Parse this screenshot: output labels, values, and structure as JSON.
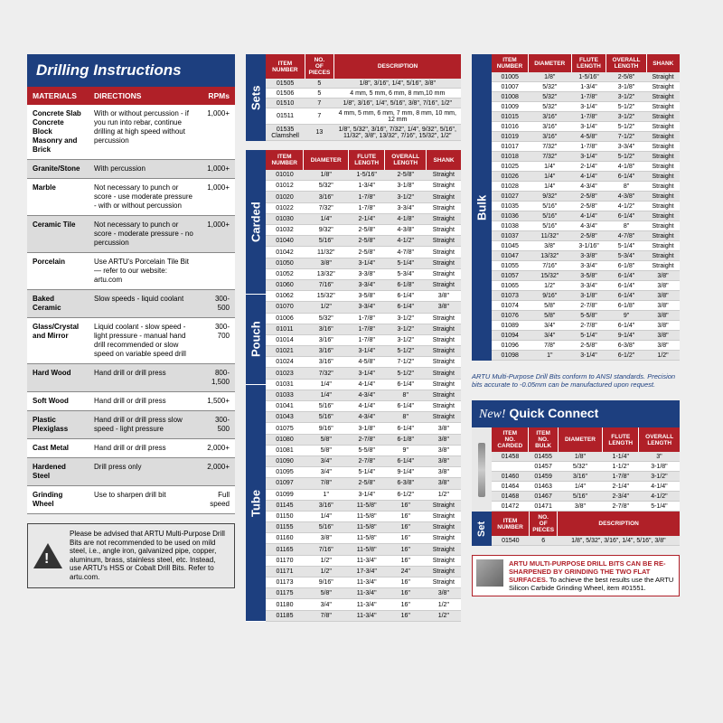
{
  "drilling": {
    "title": "Drilling Instructions",
    "cols": [
      "MATERIALS",
      "DIRECTIONS",
      "RPMs"
    ],
    "rows": [
      {
        "m": "Concrete Slab\nConcrete Block\nMasonry and Brick",
        "d": "With or without percussion - if you run into rebar, continue drilling at high speed without percussion",
        "r": "1,000+"
      },
      {
        "m": "Granite/Stone",
        "d": "With percussion",
        "r": "1,000+"
      },
      {
        "m": "Marble",
        "d": "Not necessary to punch or score - use moderate pressure - with or without percussion",
        "r": "1,000+"
      },
      {
        "m": "Ceramic Tile",
        "d": "Not necessary to punch or score - moderate pressure - no percussion",
        "r": "1,000+"
      },
      {
        "m": "Porcelain",
        "d": "Use ARTU's Porcelain Tile Bit — refer to our website: artu.com",
        "r": ""
      },
      {
        "m": "Baked Ceramic",
        "d": "Slow speeds - liquid coolant",
        "r": "300-500"
      },
      {
        "m": "Glass/Crystal and Mirror",
        "d": "Liquid coolant - slow speed - light pressure - manual hand drill recommended or slow speed on variable speed drill",
        "r": "300-700"
      },
      {
        "m": "Hard Wood",
        "d": "Hand drill or drill press",
        "r": "800-1,500"
      },
      {
        "m": "Soft Wood",
        "d": "Hand drill or drill press",
        "r": "1,500+"
      },
      {
        "m": "Plastic Plexiglass",
        "d": "Hand drill or drill press slow speed - light pressure",
        "r": "300-500"
      },
      {
        "m": "Cast Metal",
        "d": "Hand drill or drill press",
        "r": "2,000+"
      },
      {
        "m": "Hardened Steel",
        "d": "Drill press only",
        "r": "2,000+"
      },
      {
        "m": "Grinding Wheel",
        "d": "Use to sharpen drill bit",
        "r": "Full speed"
      }
    ]
  },
  "warning": "Please be advised that ARTU Multi-Purpose Drill Bits are not recommended to be used on mild steel, i.e., angle iron, galvanized pipe, copper, aluminum, brass, stainless steel, etc. Instead, use ARTU's HSS or Cobalt Drill Bits. Refer to artu.com.",
  "sets": {
    "label": "Sets",
    "cols": [
      "ITEM NUMBER",
      "NO. OF PIECES",
      "DESCRIPTION"
    ],
    "rows": [
      [
        "01505",
        "5",
        "1/8\", 3/16\", 1/4\", 5/16\", 3/8\""
      ],
      [
        "01506",
        "5",
        "4 mm, 5 mm, 6 mm, 8 mm,10 mm"
      ],
      [
        "01510",
        "7",
        "1/8\", 3/16\", 1/4\", 5/16\", 3/8\", 7/16\", 1/2\""
      ],
      [
        "01511",
        "7",
        "4 mm, 5 mm, 6 mm, 7 mm, 8 mm, 10 mm, 12 mm"
      ],
      [
        "01535 Clamshell",
        "13",
        "1/8\", 5/32\", 3/16\", 7/32\", 1/4\", 9/32\", 5/16\", 11/32\", 3/8\", 13/32\", 7/16\", 15/32\", 1/2\""
      ]
    ]
  },
  "drill5": {
    "labels": [
      "Carded",
      "Pouch",
      "Tube"
    ],
    "heights": [
      160,
      100,
      262
    ],
    "cols": [
      "ITEM NUMBER",
      "DIAMETER",
      "FLUTE LENGTH",
      "OVERALL LENGTH",
      "SHANK"
    ],
    "rows": [
      [
        "01010",
        "1/8\"",
        "1-5/16\"",
        "2-5/8\"",
        "Straight"
      ],
      [
        "01012",
        "5/32\"",
        "1-3/4\"",
        "3-1/8\"",
        "Straight"
      ],
      [
        "01020",
        "3/16\"",
        "1-7/8\"",
        "3-1/2\"",
        "Straight"
      ],
      [
        "01022",
        "7/32\"",
        "1-7/8\"",
        "3-3/4\"",
        "Straight"
      ],
      [
        "01030",
        "1/4\"",
        "2-1/4\"",
        "4-1/8\"",
        "Straight"
      ],
      [
        "01032",
        "9/32\"",
        "2-5/8\"",
        "4-3/8\"",
        "Straight"
      ],
      [
        "01040",
        "5/16\"",
        "2-5/8\"",
        "4-1/2\"",
        "Straight"
      ],
      [
        "01042",
        "11/32\"",
        "2-5/8\"",
        "4-7/8\"",
        "Straight"
      ],
      [
        "01050",
        "3/8\"",
        "3-1/4\"",
        "5-1/4\"",
        "Straight"
      ],
      [
        "01052",
        "13/32\"",
        "3-3/8\"",
        "5-3/4\"",
        "Straight"
      ],
      [
        "01060",
        "7/16\"",
        "3-3/4\"",
        "6-1/8\"",
        "Straight"
      ],
      [
        "01062",
        "15/32\"",
        "3-5/8\"",
        "6-1/4\"",
        "3/8\""
      ],
      [
        "01070",
        "1/2\"",
        "3-3/4\"",
        "6-1/4\"",
        "3/8\""
      ],
      [
        "01006",
        "5/32\"",
        "1-7/8\"",
        "3-1/2\"",
        "Straight",
        "div"
      ],
      [
        "01011",
        "3/16\"",
        "1-7/8\"",
        "3-1/2\"",
        "Straight"
      ],
      [
        "01014",
        "3/16\"",
        "1-7/8\"",
        "3-1/2\"",
        "Straight"
      ],
      [
        "01021",
        "3/16\"",
        "3-1/4\"",
        "5-1/2\"",
        "Straight"
      ],
      [
        "01024",
        "3/16\"",
        "4-5/8\"",
        "7-1/2\"",
        "Straight"
      ],
      [
        "01023",
        "7/32\"",
        "3-1/4\"",
        "5-1/2\"",
        "Straight"
      ],
      [
        "01031",
        "1/4\"",
        "4-1/4\"",
        "6-1/4\"",
        "Straight"
      ],
      [
        "01033",
        "1/4\"",
        "4-3/4\"",
        "8\"",
        "Straight"
      ],
      [
        "01041",
        "5/16\"",
        "4-1/4\"",
        "6-1/4\"",
        "Straight",
        "div"
      ],
      [
        "01043",
        "5/16\"",
        "4-3/4\"",
        "8\"",
        "Straight"
      ],
      [
        "01075",
        "9/16\"",
        "3-1/8\"",
        "6-1/4\"",
        "3/8\""
      ],
      [
        "01080",
        "5/8\"",
        "2-7/8\"",
        "6-1/8\"",
        "3/8\""
      ],
      [
        "01081",
        "5/8\"",
        "5-5/8\"",
        "9\"",
        "3/8\""
      ],
      [
        "01090",
        "3/4\"",
        "2-7/8\"",
        "6-1/4\"",
        "3/8\""
      ],
      [
        "01095",
        "3/4\"",
        "5-1/4\"",
        "9-1/4\"",
        "3/8\""
      ],
      [
        "01097",
        "7/8\"",
        "2-5/8\"",
        "6-3/8\"",
        "3/8\""
      ],
      [
        "01099",
        "1\"",
        "3-1/4\"",
        "6-1/2\"",
        "1/2\""
      ],
      [
        "01145",
        "3/16\"",
        "11-5/8\"",
        "16\"",
        "Straight"
      ],
      [
        "01150",
        "1/4\"",
        "11-5/8\"",
        "16\"",
        "Straight"
      ],
      [
        "01155",
        "5/16\"",
        "11-5/8\"",
        "16\"",
        "Straight"
      ],
      [
        "01160",
        "3/8\"",
        "11-5/8\"",
        "16\"",
        "Straight"
      ],
      [
        "01165",
        "7/16\"",
        "11-5/8\"",
        "16\"",
        "Straight"
      ],
      [
        "01170",
        "1/2\"",
        "11-3/4\"",
        "16\"",
        "Straight"
      ],
      [
        "01171",
        "1/2\"",
        "17-3/4\"",
        "24\"",
        "Straight"
      ],
      [
        "01173",
        "9/16\"",
        "11-3/4\"",
        "16\"",
        "Straight"
      ],
      [
        "01175",
        "5/8\"",
        "11-3/4\"",
        "16\"",
        "3/8\""
      ],
      [
        "01180",
        "3/4\"",
        "11-3/4\"",
        "16\"",
        "1/2\""
      ],
      [
        "01185",
        "7/8\"",
        "11-3/4\"",
        "16\"",
        "1/2\""
      ]
    ]
  },
  "bulk": {
    "label": "Bulk",
    "cols": [
      "ITEM NUMBER",
      "DIAMETER",
      "FLUTE LENGTH",
      "OVERALL LENGTH",
      "SHANK"
    ],
    "rows": [
      [
        "01005",
        "1/8\"",
        "1-5/16\"",
        "2-5/8\"",
        "Straight"
      ],
      [
        "01007",
        "5/32\"",
        "1-3/4\"",
        "3-1/8\"",
        "Straight"
      ],
      [
        "01008",
        "5/32\"",
        "1-7/8\"",
        "3-1/2\"",
        "Straight"
      ],
      [
        "01009",
        "5/32\"",
        "3-1/4\"",
        "5-1/2\"",
        "Straight"
      ],
      [
        "01015",
        "3/16\"",
        "1-7/8\"",
        "3-1/2\"",
        "Straight"
      ],
      [
        "01016",
        "3/16\"",
        "3-1/4\"",
        "5-1/2\"",
        "Straight"
      ],
      [
        "01019",
        "3/16\"",
        "4-5/8\"",
        "7-1/2\"",
        "Straight"
      ],
      [
        "01017",
        "7/32\"",
        "1-7/8\"",
        "3-3/4\"",
        "Straight"
      ],
      [
        "01018",
        "7/32\"",
        "3-1/4\"",
        "5-1/2\"",
        "Straight"
      ],
      [
        "01025",
        "1/4\"",
        "2-1/4\"",
        "4-1/8\"",
        "Straight"
      ],
      [
        "01026",
        "1/4\"",
        "4-1/4\"",
        "6-1/4\"",
        "Straight"
      ],
      [
        "01028",
        "1/4\"",
        "4-3/4\"",
        "8\"",
        "Straight"
      ],
      [
        "01027",
        "9/32\"",
        "2-5/8\"",
        "4-3/8\"",
        "Straight"
      ],
      [
        "01035",
        "5/16\"",
        "2-5/8\"",
        "4-1/2\"",
        "Straight"
      ],
      [
        "01036",
        "5/16\"",
        "4-1/4\"",
        "6-1/4\"",
        "Straight"
      ],
      [
        "01038",
        "5/16\"",
        "4-3/4\"",
        "8\"",
        "Straight"
      ],
      [
        "01037",
        "11/32\"",
        "2-5/8\"",
        "4-7/8\"",
        "Straight"
      ],
      [
        "01045",
        "3/8\"",
        "3-1/16\"",
        "5-1/4\"",
        "Straight"
      ],
      [
        "01047",
        "13/32\"",
        "3-3/8\"",
        "5-3/4\"",
        "Straight"
      ],
      [
        "01055",
        "7/16\"",
        "3-3/4\"",
        "6-1/8\"",
        "Straight"
      ],
      [
        "01057",
        "15/32\"",
        "3-5/8\"",
        "6-1/4\"",
        "3/8\""
      ],
      [
        "01065",
        "1/2\"",
        "3-3/4\"",
        "6-1/4\"",
        "3/8\""
      ],
      [
        "01073",
        "9/16\"",
        "3-1/8\"",
        "6-1/4\"",
        "3/8\""
      ],
      [
        "01074",
        "5/8\"",
        "2-7/8\"",
        "6-1/8\"",
        "3/8\""
      ],
      [
        "01076",
        "5/8\"",
        "5-5/8\"",
        "9\"",
        "3/8\""
      ],
      [
        "01089",
        "3/4\"",
        "2-7/8\"",
        "6-1/4\"",
        "3/8\""
      ],
      [
        "01094",
        "3/4\"",
        "5-1/4\"",
        "9-1/4\"",
        "3/8\""
      ],
      [
        "01096",
        "7/8\"",
        "2-5/8\"",
        "6-3/8\"",
        "3/8\""
      ],
      [
        "01098",
        "1\"",
        "3-1/4\"",
        "6-1/2\"",
        "1/2\""
      ]
    ]
  },
  "note": "ARTU Multi-Purpose Drill Bits conform to ANSI standards. Precision bits accurate to -0.05mm can be manufactured upon request.",
  "qc": {
    "new": "New!",
    "title": "Quick Connect",
    "cols": [
      "ITEM NO. CARDED",
      "ITEM NO. BULK",
      "DIAMETER",
      "FLUTE LENGTH",
      "OVERALL LENGTH"
    ],
    "rows": [
      [
        "01458",
        "01455",
        "1/8\"",
        "1-1/4\"",
        "3\""
      ],
      [
        "",
        "01457",
        "5/32\"",
        "1-1/2\"",
        "3-1/8\""
      ],
      [
        "01460",
        "01459",
        "3/16\"",
        "1-7/8\"",
        "3-1/2\""
      ],
      [
        "01464",
        "01463",
        "1/4\"",
        "2-1/4\"",
        "4-1/4\""
      ],
      [
        "01468",
        "01467",
        "5/16\"",
        "2-3/4\"",
        "4-1/2\""
      ],
      [
        "01472",
        "01471",
        "3/8\"",
        "2-7/8\"",
        "5-1/4\""
      ]
    ],
    "set": {
      "label": "Set",
      "cols": [
        "ITEM NUMBER",
        "NO. OF PIECES",
        "DESCRIPTION"
      ],
      "row": [
        "01540",
        "6",
        "1/8\", 5/32\", 3/16\", 1/4\", 5/16\", 3/8\""
      ]
    }
  },
  "resharpen": {
    "title": "ARTU MULTI-PURPOSE DRILL BITS CAN BE RE-SHARPENED BY GRINDING THE TWO FLAT SURFACES.",
    "text": "To achieve the best results use the ARTU Silicon Carbide Grinding Wheel, item #01551."
  }
}
